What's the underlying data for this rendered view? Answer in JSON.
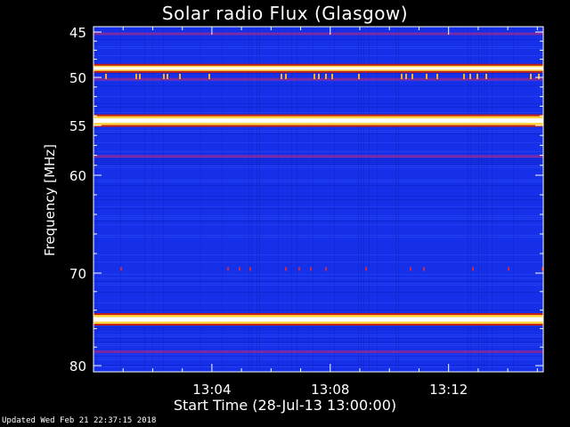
{
  "chart_data": {
    "type": "heatmap",
    "title": "Solar radio Flux (Glasgow)",
    "ylabel": "Frequency [MHz]",
    "xlabel": "Start Time (28-Jul-13 13:00:00)",
    "ylim": [
      45,
      80
    ],
    "yticks": [
      "45",
      "50",
      "55",
      "60",
      "70",
      "80"
    ],
    "ytick_values": [
      45,
      50,
      55,
      60,
      70,
      80
    ],
    "xlim_minutes": [
      0,
      15.2
    ],
    "xticks": [
      "13:04",
      "13:08",
      "13:12"
    ],
    "xtick_minutes": [
      4,
      8,
      12
    ],
    "background_color": "#1530e8",
    "bright_bands_mhz": [
      {
        "freq": 49.0,
        "intensity": "high"
      },
      {
        "freq": 54.5,
        "intensity": "very-high"
      },
      {
        "freq": 75.0,
        "intensity": "very-high"
      }
    ],
    "weak_bands_mhz": [
      45.2,
      50.2,
      58.1,
      78.5
    ]
  },
  "footer": {
    "updated": "Updated Wed Feb 21 22:37:15 2018"
  }
}
